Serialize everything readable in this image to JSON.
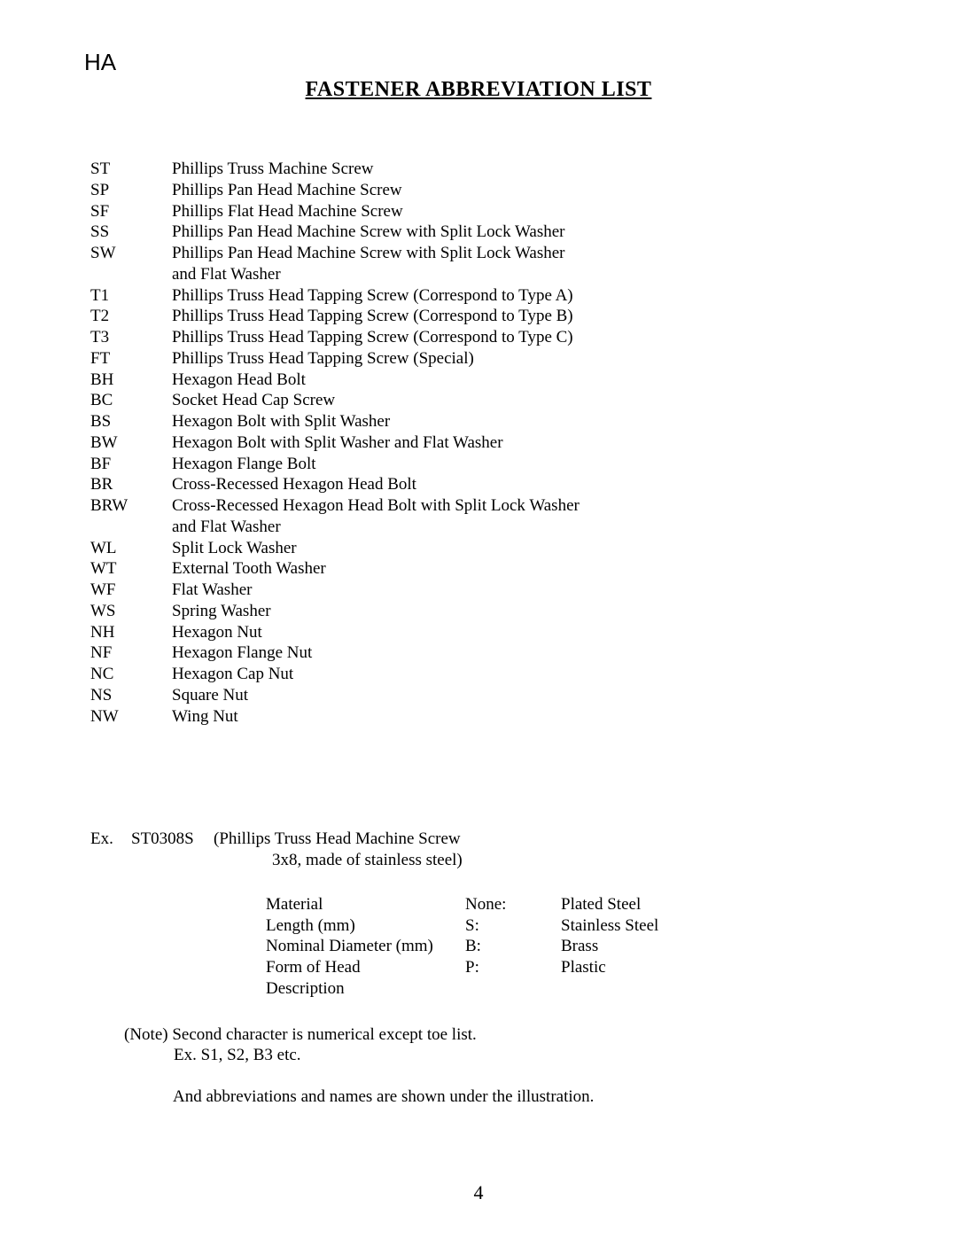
{
  "corner_label": "HA",
  "title": "FASTENER ABBREVIATION LIST",
  "abbreviations": [
    {
      "code": "ST",
      "desc": "Phillips Truss Machine Screw"
    },
    {
      "code": "SP",
      "desc": "Phillips Pan Head Machine Screw"
    },
    {
      "code": "SF",
      "desc": "Phillips Flat Head Machine Screw"
    },
    {
      "code": "SS",
      "desc": "Phillips Pan Head Machine Screw with Split Lock Washer"
    },
    {
      "code": "SW",
      "desc": "Phillips Pan Head Machine Screw with Split Lock Washer"
    },
    {
      "code": "",
      "desc": "and Flat Washer"
    },
    {
      "code": "T1",
      "desc": "Phillips Truss Head Tapping Screw (Correspond to Type A)"
    },
    {
      "code": "T2",
      "desc": "Phillips Truss Head Tapping Screw (Correspond to Type B)"
    },
    {
      "code": "T3",
      "desc": "Phillips Truss Head Tapping Screw (Correspond to Type C)"
    },
    {
      "code": "FT",
      "desc": "Phillips Truss Head Tapping Screw (Special)"
    },
    {
      "code": "BH",
      "desc": "Hexagon Head Bolt"
    },
    {
      "code": "BC",
      "desc": "Socket Head Cap Screw"
    },
    {
      "code": "BS",
      "desc": "Hexagon Bolt with Split Washer"
    },
    {
      "code": "BW",
      "desc": "Hexagon Bolt with Split Washer and Flat Washer"
    },
    {
      "code": "BF",
      "desc": "Hexagon Flange Bolt"
    },
    {
      "code": "BR",
      "desc": "Cross-Recessed Hexagon Head Bolt"
    },
    {
      "code": "BRW",
      "desc": "Cross-Recessed Hexagon Head Bolt with Split Lock Washer"
    },
    {
      "code": "",
      "desc": "and Flat Washer"
    },
    {
      "code": "WL",
      "desc": "Split Lock Washer"
    },
    {
      "code": "WT",
      "desc": "External Tooth Washer"
    },
    {
      "code": "WF",
      "desc": "Flat Washer"
    },
    {
      "code": "WS",
      "desc": "Spring Washer"
    },
    {
      "code": "NH",
      "desc": "Hexagon Nut"
    },
    {
      "code": "NF",
      "desc": "Hexagon Flange Nut"
    },
    {
      "code": "NC",
      "desc": "Hexagon Cap Nut"
    },
    {
      "code": "NS",
      "desc": "Square Nut"
    },
    {
      "code": "NW",
      "desc": "Wing Nut"
    }
  ],
  "example": {
    "label": "Ex.",
    "code": "ST0308S",
    "desc1": "(Phillips Truss Head Machine Screw",
    "desc2": "3x8, made of stainless steel)"
  },
  "material_rows": {
    "col1": [
      "Material",
      "Length  (mm)",
      "Nominal Diameter  (mm)",
      "Form of Head",
      "Description"
    ],
    "col2": [
      "None:",
      "S:",
      "B:",
      "P:",
      ""
    ],
    "col3": [
      "Plated Steel",
      "Stainless Steel",
      "Brass",
      "Plastic",
      ""
    ]
  },
  "note": {
    "line1": "(Note) Second character is numerical except toe list.",
    "line2": "Ex.  S1, S2, B3 etc."
  },
  "closing": "And abbreviations and names are shown under the illustration.",
  "page_number": "4"
}
